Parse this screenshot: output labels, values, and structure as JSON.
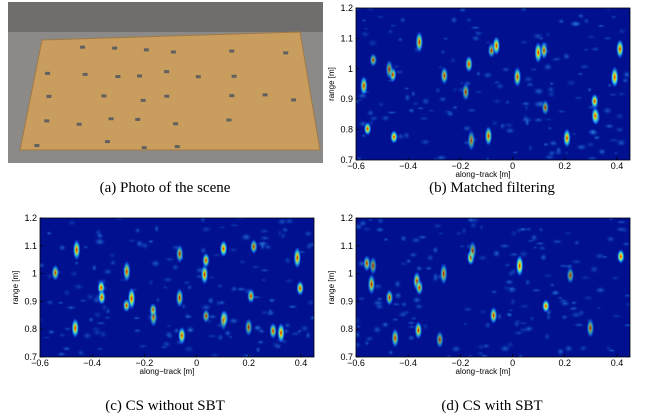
{
  "photo": {
    "caption": "(a) Photo of the scene"
  },
  "chart_data": [
    {
      "type": "heatmap",
      "caption": "(b) Matched filtering",
      "xlabel": "along−track [m]",
      "ylabel": "range [m]",
      "xlim": [
        -0.6,
        0.45
      ],
      "ylim": [
        0.7,
        1.2
      ],
      "xticks": [
        {
          "value": -0.6,
          "label": "−0.6"
        },
        {
          "value": -0.4,
          "label": "−0.4"
        },
        {
          "value": -0.2,
          "label": "−0.2"
        },
        0,
        0.2,
        0.4
      ],
      "yticks": [
        0.7,
        0.8,
        0.9,
        1,
        1.1,
        1.2
      ]
    },
    {
      "type": "heatmap",
      "caption": "(c) CS without SBT",
      "xlabel": "along−track [m]",
      "ylabel": "range [m]",
      "xlim": [
        -0.6,
        0.45
      ],
      "ylim": [
        0.7,
        1.2
      ],
      "xticks": [
        {
          "value": -0.6,
          "label": "−0.6"
        },
        {
          "value": -0.4,
          "label": "−0.4"
        },
        {
          "value": -0.2,
          "label": "−0.2"
        },
        0,
        0.2,
        0.4
      ],
      "yticks": [
        0.7,
        0.8,
        0.9,
        1,
        1.1,
        1.2
      ]
    },
    {
      "type": "heatmap",
      "caption": "(d) CS with SBT",
      "xlabel": "along−track [m]",
      "ylabel": "range [m]",
      "xlim": [
        -0.6,
        0.45
      ],
      "ylim": [
        0.7,
        1.2
      ],
      "xticks": [
        {
          "value": -0.6,
          "label": "−0.6"
        },
        {
          "value": -0.4,
          "label": "−0.4"
        },
        {
          "value": -0.2,
          "label": "−0.2"
        },
        0,
        0.2,
        0.4
      ],
      "yticks": [
        0.7,
        0.8,
        0.9,
        1,
        1.1,
        1.2
      ]
    }
  ]
}
